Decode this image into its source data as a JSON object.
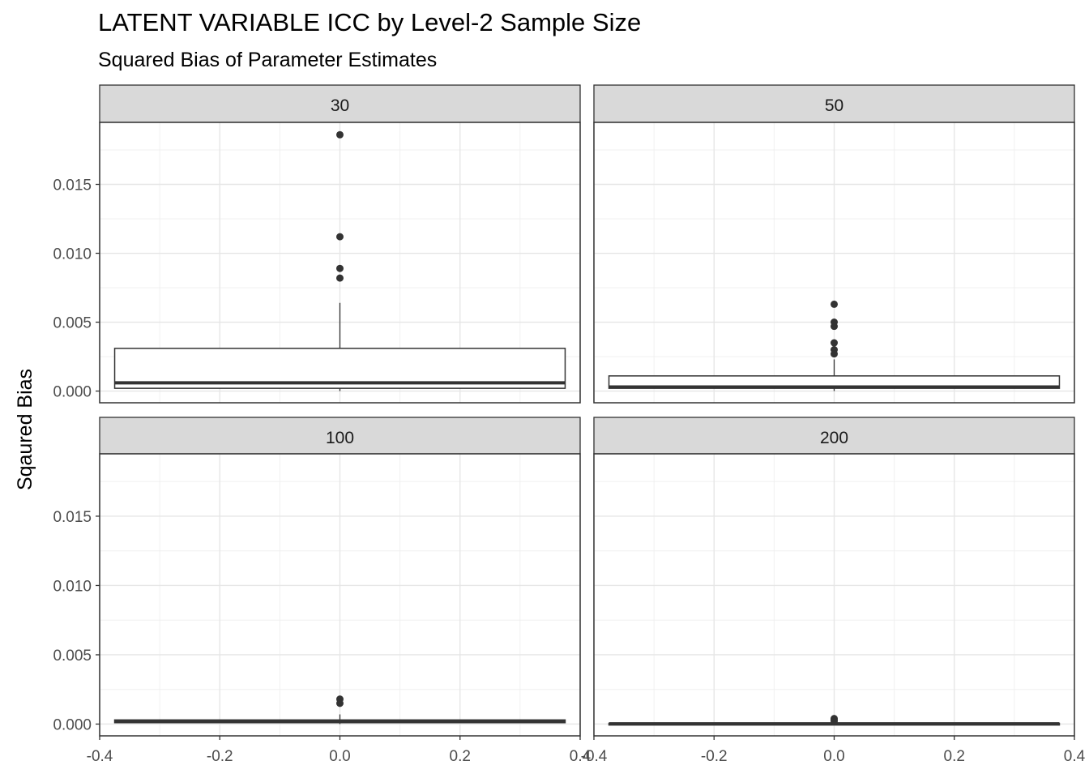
{
  "chart_data": {
    "type": "boxplot",
    "title": "LATENT VARIABLE ICC by Level-2 Sample Size",
    "subtitle": "Squared Bias of Parameter Estimates",
    "xlabel": "",
    "ylabel": "Sqaured Bias",
    "xlim": [
      -0.4,
      0.4
    ],
    "ylim": [
      0,
      0.019
    ],
    "x_ticks": [
      "-0.4",
      "-0.2",
      "0.0",
      "0.2",
      "0.4"
    ],
    "y_ticks": [
      "0.000",
      "0.005",
      "0.010",
      "0.015"
    ],
    "grid": true,
    "box_x_range": [
      -0.375,
      0.375
    ],
    "facets": [
      {
        "label": "30",
        "box": {
          "q1": 0.0002,
          "median": 0.0006,
          "q3": 0.0031,
          "whisker_low": 0.0,
          "whisker_high": 0.0064
        },
        "outliers": [
          0.0186,
          0.0112,
          0.0089,
          0.0082
        ]
      },
      {
        "label": "50",
        "box": {
          "q1": 0.0002,
          "median": 0.0003,
          "q3": 0.0011,
          "whisker_low": 0.0,
          "whisker_high": 0.0023
        },
        "outliers": [
          0.0063,
          0.005,
          0.0047,
          0.0035,
          0.003,
          0.0027
        ]
      },
      {
        "label": "100",
        "box": {
          "q1": 0.0001,
          "median": 0.0002,
          "q3": 0.0003,
          "whisker_low": 0.0,
          "whisker_high": 0.0007
        },
        "outliers": [
          0.0018,
          0.0015
        ]
      },
      {
        "label": "200",
        "box": {
          "q1": 0.0,
          "median": 2e-05,
          "q3": 5e-05,
          "whisker_low": 0.0,
          "whisker_high": 0.0001
        },
        "outliers": [
          0.0004,
          0.0003,
          0.0002
        ]
      }
    ]
  }
}
